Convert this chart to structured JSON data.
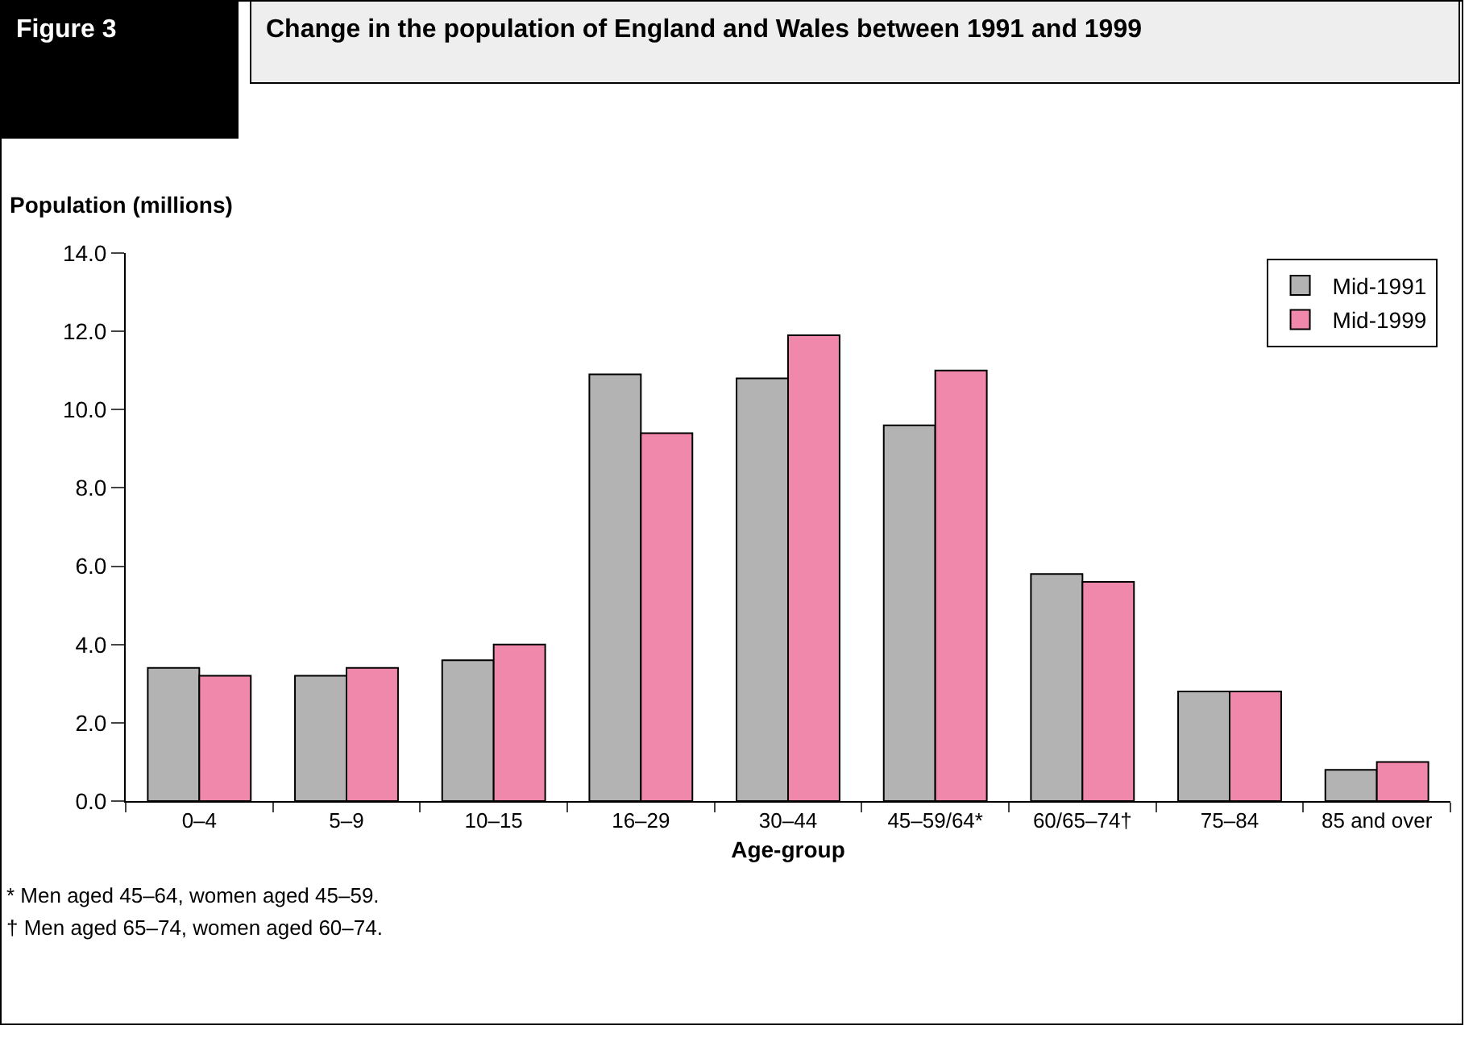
{
  "chart_data": {
    "type": "bar",
    "title": "Change in the population of England and Wales between 1991 and 1999",
    "ylabel": "Population (millions)",
    "xlabel": "Age-group",
    "categories": [
      "0–4",
      "5–9",
      "10–15",
      "16–29",
      "30–44",
      "45–59/64*",
      "60/65–74†",
      "75–84",
      "85 and over"
    ],
    "series": [
      {
        "name": "Mid-1991",
        "color": "#b3b3b3",
        "values": [
          3.4,
          3.2,
          3.6,
          10.9,
          10.8,
          9.6,
          5.8,
          2.8,
          0.8
        ]
      },
      {
        "name": "Mid-1999",
        "color": "#f088ac",
        "values": [
          3.2,
          3.4,
          4.0,
          9.4,
          11.9,
          11.0,
          5.6,
          2.8,
          1.0
        ]
      }
    ],
    "ylim": [
      0,
      14
    ],
    "yticks": [
      {
        "value": 0,
        "label": "0.0"
      },
      {
        "value": 2,
        "label": "2.0"
      },
      {
        "value": 4,
        "label": "4.0"
      },
      {
        "value": 6,
        "label": "6.0"
      },
      {
        "value": 8,
        "label": "8.0"
      },
      {
        "value": 10,
        "label": "10.0"
      },
      {
        "value": 12,
        "label": "12.0"
      },
      {
        "value": 14,
        "label": "14.0"
      }
    ],
    "grid": false,
    "legend": "top right",
    "annotations": [
      "Figure 3",
      "* Men aged 45–64, women aged 45–59.",
      "† Men aged 65–74, women aged 60–74."
    ]
  }
}
